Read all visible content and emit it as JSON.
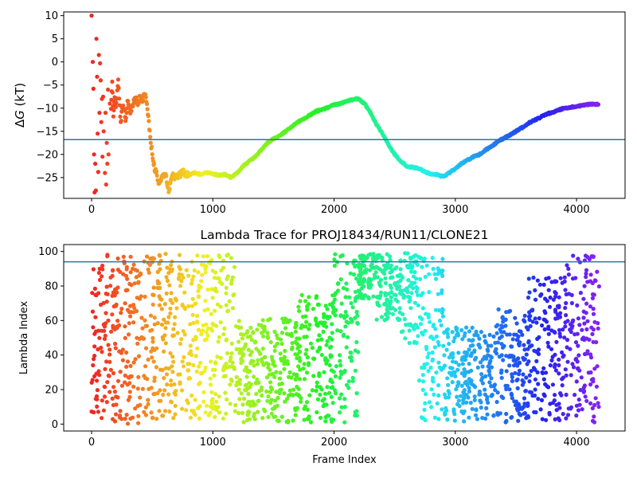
{
  "chart_data": [
    {
      "type": "scatter",
      "title": "",
      "xlabel": "",
      "ylabel": "ΔG (kT)",
      "ylabel_prefix": "Δ",
      "ylabel_var": "G",
      "ylabel_suffix": " (kT)",
      "xlim": [
        -230,
        4400
      ],
      "ylim": [
        -29.5,
        10.8
      ],
      "xticks": [
        0,
        1000,
        2000,
        3000,
        4000
      ],
      "yticks": [
        10,
        5,
        0,
        -5,
        -10,
        -15,
        -20,
        -25
      ],
      "grid": false,
      "reference_line": {
        "y": -16.8,
        "color": "#1f77b4"
      },
      "colormap": "rainbow (red at frame 0 → violet at final frame)",
      "series": [
        {
          "points": [
            [
              0,
              10.0
            ],
            [
              10,
              0.0
            ],
            [
              15,
              -5.8
            ],
            [
              20,
              -20.0
            ],
            [
              25,
              -28.2
            ],
            [
              30,
              -22.0
            ],
            [
              35,
              -27.8
            ],
            [
              40,
              5.0
            ],
            [
              45,
              -3.2
            ],
            [
              50,
              -15.5
            ],
            [
              55,
              -23.8
            ],
            [
              60,
              1.5
            ],
            [
              65,
              -11.0
            ],
            [
              70,
              -0.3
            ],
            [
              75,
              -4.0
            ],
            [
              80,
              -13.0
            ],
            [
              85,
              -8.0
            ],
            [
              90,
              -20.5
            ],
            [
              95,
              -7.5
            ],
            [
              100,
              -15.0
            ],
            [
              110,
              -24.0
            ],
            [
              115,
              -11.0
            ],
            [
              120,
              -26.5
            ],
            [
              125,
              -17.5
            ],
            [
              130,
              -22.0
            ],
            [
              135,
              -6.0
            ],
            [
              140,
              -20.0
            ],
            [
              150,
              -9.0
            ],
            [
              160,
              -10.5
            ],
            [
              170,
              -3.8
            ],
            [
              180,
              -12.0
            ],
            [
              190,
              -7.5
            ],
            [
              200,
              -10.0
            ],
            [
              220,
              -4.0
            ],
            [
              240,
              -13.0
            ],
            [
              260,
              -9.0
            ],
            [
              280,
              -12.5
            ],
            [
              300,
              -8.0
            ],
            [
              320,
              -11.5
            ],
            [
              340,
              -9.5
            ],
            [
              360,
              -7.8
            ],
            [
              380,
              -9.0
            ],
            [
              400,
              -7.5
            ],
            [
              420,
              -8.5
            ],
            [
              440,
              -6.8
            ],
            [
              460,
              -10.5
            ],
            [
              480,
              -15.0
            ],
            [
              500,
              -20.0
            ],
            [
              520,
              -23.0
            ],
            [
              540,
              -24.5
            ],
            [
              560,
              -26.5
            ],
            [
              580,
              -25.0
            ],
            [
              600,
              -24.0
            ],
            [
              620,
              -25.5
            ],
            [
              640,
              -28.3
            ],
            [
              660,
              -24.5
            ],
            [
              700,
              -25.0
            ],
            [
              750,
              -23.8
            ],
            [
              800,
              -24.5
            ],
            [
              850,
              -24.0
            ],
            [
              900,
              -24.3
            ],
            [
              950,
              -23.9
            ],
            [
              1000,
              -24.2
            ],
            [
              1050,
              -24.5
            ],
            [
              1100,
              -24.3
            ],
            [
              1150,
              -25.0
            ],
            [
              1200,
              -24.0
            ],
            [
              1250,
              -22.5
            ],
            [
              1300,
              -21.5
            ],
            [
              1350,
              -20.5
            ],
            [
              1400,
              -19.0
            ],
            [
              1450,
              -17.5
            ],
            [
              1500,
              -16.6
            ],
            [
              1550,
              -16.0
            ],
            [
              1600,
              -15.0
            ],
            [
              1650,
              -14.0
            ],
            [
              1700,
              -13.0
            ],
            [
              1750,
              -12.3
            ],
            [
              1800,
              -11.5
            ],
            [
              1850,
              -10.7
            ],
            [
              1900,
              -10.3
            ],
            [
              1950,
              -9.8
            ],
            [
              2000,
              -9.3
            ],
            [
              2050,
              -9.0
            ],
            [
              2100,
              -8.5
            ],
            [
              2150,
              -8.2
            ],
            [
              2200,
              -7.9
            ],
            [
              2250,
              -9.0
            ],
            [
              2300,
              -11.0
            ],
            [
              2350,
              -13.5
            ],
            [
              2400,
              -15.5
            ],
            [
              2450,
              -18.0
            ],
            [
              2500,
              -20.0
            ],
            [
              2550,
              -21.5
            ],
            [
              2600,
              -22.5
            ],
            [
              2650,
              -22.8
            ],
            [
              2700,
              -23.0
            ],
            [
              2750,
              -23.8
            ],
            [
              2800,
              -24.2
            ],
            [
              2850,
              -24.4
            ],
            [
              2900,
              -24.8
            ],
            [
              2950,
              -24.0
            ],
            [
              3000,
              -23.0
            ],
            [
              3050,
              -22.0
            ],
            [
              3100,
              -21.2
            ],
            [
              3150,
              -20.5
            ],
            [
              3200,
              -20.0
            ],
            [
              3250,
              -19.0
            ],
            [
              3300,
              -18.3
            ],
            [
              3350,
              -17.2
            ],
            [
              3400,
              -16.5
            ],
            [
              3450,
              -15.8
            ],
            [
              3500,
              -15.0
            ],
            [
              3550,
              -14.2
            ],
            [
              3600,
              -13.3
            ],
            [
              3650,
              -12.6
            ],
            [
              3700,
              -12.0
            ],
            [
              3750,
              -11.3
            ],
            [
              3800,
              -10.9
            ],
            [
              3850,
              -10.4
            ],
            [
              3900,
              -10.0
            ],
            [
              3950,
              -9.8
            ],
            [
              4000,
              -9.6
            ],
            [
              4050,
              -9.4
            ],
            [
              4100,
              -9.2
            ],
            [
              4150,
              -9.1
            ],
            [
              4180,
              -9.2
            ]
          ]
        }
      ]
    },
    {
      "type": "scatter",
      "title": "Lambda Trace for PROJ18434/RUN11/CLONE21",
      "xlabel": "Frame Index",
      "ylabel": "Lambda Index",
      "xlim": [
        -230,
        4400
      ],
      "ylim": [
        -4,
        104
      ],
      "xticks": [
        0,
        1000,
        2000,
        3000,
        4000
      ],
      "yticks": [
        0,
        20,
        40,
        60,
        80,
        100
      ],
      "grid": false,
      "reference_line": {
        "y": 94,
        "color": "#1f77b4"
      },
      "colormap": "rainbow (red at frame 0 → violet at final frame)",
      "sampling_note": "approximately 10 points per 20 frames",
      "bands": [
        {
          "x": [
            0,
            90
          ],
          "y": [
            2,
            98
          ]
        },
        {
          "x": [
            90,
            180
          ],
          "y": [
            0,
            99
          ]
        },
        {
          "x": [
            180,
            450
          ],
          "y": [
            0,
            99
          ]
        },
        {
          "x": [
            450,
            650
          ],
          "y": [
            3,
            99
          ]
        },
        {
          "x": [
            650,
            900
          ],
          "y": [
            3,
            99
          ]
        },
        {
          "x": [
            900,
            1180
          ],
          "y": [
            3,
            99
          ]
        },
        {
          "x": [
            1180,
            1400
          ],
          "y": [
            1,
            60
          ]
        },
        {
          "x": [
            1400,
            1700
          ],
          "y": [
            1,
            62
          ]
        },
        {
          "x": [
            1700,
            2000
          ],
          "y": [
            1,
            76
          ]
        },
        {
          "x": [
            2000,
            2200
          ],
          "y": [
            1,
            99
          ]
        },
        {
          "x": [
            2200,
            2350
          ],
          "y": [
            72,
            99
          ]
        },
        {
          "x": [
            2350,
            2550
          ],
          "y": [
            60,
            99
          ]
        },
        {
          "x": [
            2550,
            2700
          ],
          "y": [
            45,
            99
          ]
        },
        {
          "x": [
            2700,
            2900
          ],
          "y": [
            1,
            98
          ]
        },
        {
          "x": [
            2900,
            3300
          ],
          "y": [
            1,
            56
          ]
        },
        {
          "x": [
            3300,
            3600
          ],
          "y": [
            1,
            68
          ]
        },
        {
          "x": [
            3600,
            3900
          ],
          "y": [
            2,
            85
          ]
        },
        {
          "x": [
            3900,
            4100
          ],
          "y": [
            2,
            99
          ]
        },
        {
          "x": [
            4100,
            4190
          ],
          "y": [
            1,
            99
          ]
        }
      ]
    }
  ]
}
